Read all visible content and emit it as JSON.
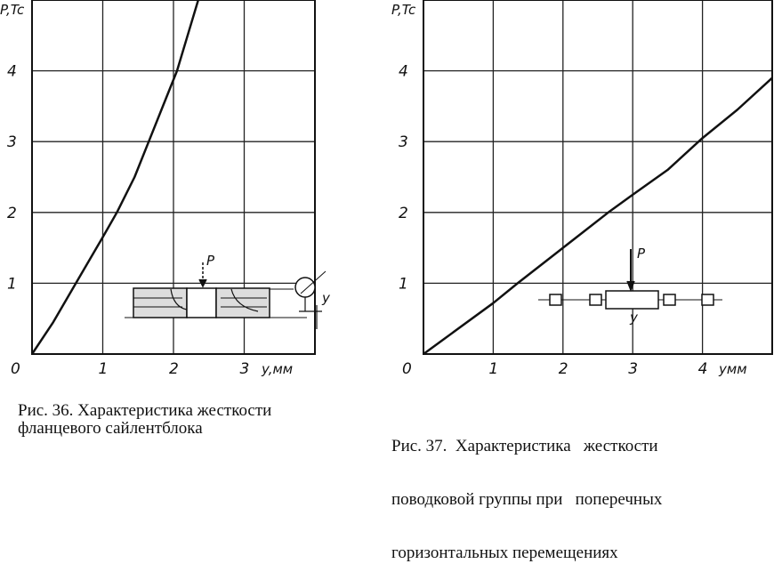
{
  "chart_data": [
    {
      "type": "line",
      "ylabel": "P,Tc",
      "xlabel": "y,мм",
      "xlim": [
        0,
        4
      ],
      "ylim": [
        0,
        5
      ],
      "x_ticks": [
        "0",
        "1",
        "2",
        "3"
      ],
      "y_ticks": [
        "1",
        "2",
        "3",
        "4"
      ],
      "grid": true,
      "x": [
        0,
        0.3,
        0.62,
        1.0,
        1.2,
        1.45,
        1.65,
        1.85,
        2.05,
        2.2,
        2.35
      ],
      "y": [
        0,
        0.45,
        1.0,
        1.65,
        2.0,
        2.5,
        3.0,
        3.5,
        4.0,
        4.5,
        5.0
      ],
      "inset_labels": [
        "P",
        "y"
      ],
      "caption": [
        "Рис. 36. Характеристика жесткости",
        "фланцевого сайлентблока"
      ],
      "color": "#111111"
    },
    {
      "type": "line",
      "ylabel": "P,Tc",
      "xlabel": "yмм",
      "xlim": [
        0,
        5
      ],
      "ylim": [
        0,
        5
      ],
      "x_ticks": [
        "0",
        "1",
        "2",
        "3",
        "4"
      ],
      "y_ticks": [
        "1",
        "2",
        "3",
        "4"
      ],
      "grid": true,
      "x": [
        0,
        1,
        1.35,
        2,
        2.65,
        3,
        3.5,
        4,
        4.5,
        5
      ],
      "y": [
        0,
        0.72,
        1.0,
        1.5,
        2.0,
        2.25,
        2.6,
        3.05,
        3.45,
        3.9
      ],
      "inset_labels": [
        "P",
        "y"
      ],
      "caption": [
        "Рис. 37.  Характеристика   жесткости",
        "поводковой группы при   поперечных",
        "горизонтальных перемещениях"
      ],
      "color": "#111111"
    }
  ]
}
